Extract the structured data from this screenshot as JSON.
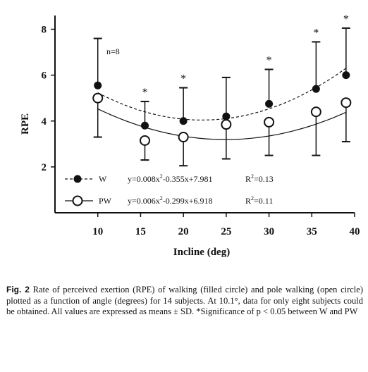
{
  "chart_data": {
    "type": "scatter",
    "x": [
      10,
      15.5,
      20,
      25,
      30,
      35.5,
      39
    ],
    "xticks": [
      10,
      15,
      20,
      25,
      30,
      35,
      40
    ],
    "yticks": [
      2,
      4,
      6,
      8
    ],
    "xlim": [
      5,
      40
    ],
    "ylim": [
      0,
      8.6
    ],
    "xlabel": "Incline (deg)",
    "ylabel": "RPE",
    "annotation": "n=8",
    "series": [
      {
        "name": "W",
        "marker": "filled",
        "line": "dashed",
        "values": [
          5.55,
          3.8,
          4.0,
          4.2,
          4.75,
          5.4,
          6.0
        ],
        "sd_upper": [
          7.6,
          4.85,
          5.45,
          5.9,
          6.25,
          7.45,
          8.05
        ],
        "equation": "y=0.008x2-0.355x+7.981",
        "r2": "R2=0.13",
        "fit": [
          0.008,
          -0.355,
          7.981
        ]
      },
      {
        "name": "PW",
        "marker": "open",
        "line": "solid",
        "values": [
          5.0,
          3.15,
          3.3,
          3.85,
          3.95,
          4.4,
          4.8
        ],
        "sd_lower": [
          3.3,
          2.3,
          2.05,
          2.35,
          2.5,
          2.5,
          3.1
        ],
        "equation": "y=0.006x2-0.299x+6.918",
        "r2": "R2=0.11",
        "fit": [
          0.006,
          -0.299,
          6.918
        ]
      }
    ],
    "significance_x": [
      15.5,
      20,
      30,
      35.5,
      39
    ],
    "significance_mark": "*"
  },
  "legend": {
    "w_label": "W",
    "w_eq_pre": "y=0.008x",
    "w_eq_post": "-0.355x+7.981",
    "w_r2_pre": "R",
    "w_r2_post": "=0.13",
    "pw_label": "PW",
    "pw_eq_pre": "y=0.006x",
    "pw_eq_post": "-0.299x+6.918",
    "pw_r2_pre": "R",
    "pw_r2_post": "=0.11",
    "sup": "2"
  },
  "caption": {
    "fig": "Fig. 2",
    "text": "Rate of perceived exertion (RPE) of walking (filled circle) and pole walking (open circle) plotted as a function of angle (degrees) for 14 subjects. At 10.1°, data for only eight subjects could be obtained. All values are expressed as means ± SD. *Significance of p < 0.05 between W and PW"
  }
}
